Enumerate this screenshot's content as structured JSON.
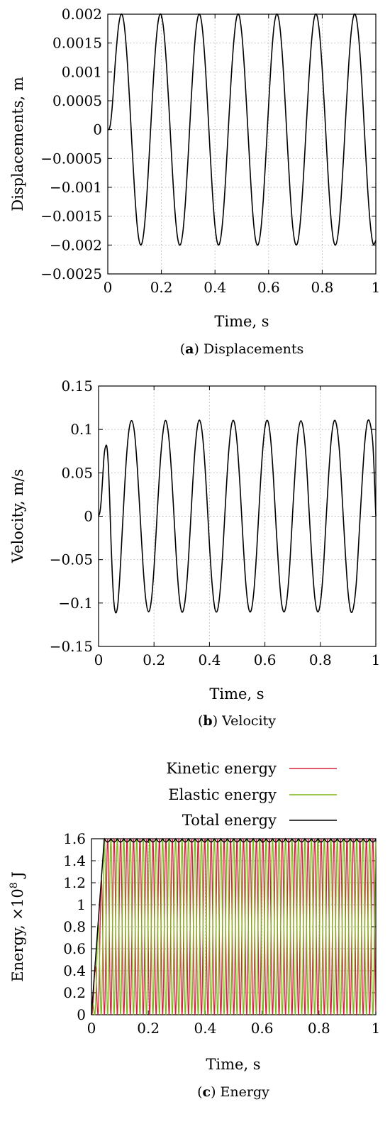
{
  "chart_data": [
    {
      "type": "line",
      "title": "",
      "xlabel": "Time, s",
      "ylabel": "Displacements, m",
      "caption_letter": "a",
      "caption_text": "Displacements",
      "xlim": [
        0,
        1
      ],
      "ylim": [
        -0.0025,
        0.002
      ],
      "grid": true,
      "x_ticks": [
        0,
        0.2,
        0.4,
        0.6,
        0.8,
        1
      ],
      "x_tick_labels": [
        "0",
        "0.2",
        "0.4",
        "0.6",
        "0.8",
        "1"
      ],
      "y_ticks": [
        0.002,
        0.0015,
        0.001,
        0.0005,
        0,
        -0.0005,
        -0.001,
        -0.0015,
        -0.002,
        -0.0025
      ],
      "y_tick_labels": [
        "0.002",
        "0.0015",
        "0.001",
        "0.0005",
        "0",
        "−0.0005",
        "−0.001",
        "−0.0015",
        "−0.002",
        "−0.0025"
      ],
      "series": [
        {
          "color": "#000000",
          "x": [
            0,
            0.005,
            0.01,
            0.015,
            0.02,
            0.025,
            0.03,
            0.04,
            0.05,
            0.06,
            0.07,
            0.08,
            0.09,
            0.1,
            0.11,
            0.12,
            0.13,
            0.14,
            0.15,
            0.16,
            0.17,
            0.18,
            0.19,
            0.2,
            0.21,
            0.22,
            0.23,
            0.24,
            0.25,
            0.26,
            0.27,
            0.28,
            0.29,
            0.3,
            0.31,
            0.32,
            0.33,
            0.34,
            0.35,
            0.36,
            0.37,
            0.38,
            0.39,
            0.4,
            0.41,
            0.42,
            0.43,
            0.44,
            0.45,
            0.46,
            0.47,
            0.48,
            0.49,
            0.5,
            0.51,
            0.52,
            0.53,
            0.54,
            0.55,
            0.56,
            0.57,
            0.58,
            0.59,
            0.6,
            0.61,
            0.62,
            0.63,
            0.64,
            0.65,
            0.66,
            0.67,
            0.68,
            0.69,
            0.7,
            0.71,
            0.72,
            0.73,
            0.74,
            0.75,
            0.76,
            0.77,
            0.78,
            0.79,
            0.8,
            0.81,
            0.82,
            0.83,
            0.84,
            0.85,
            0.86,
            0.87,
            0.88,
            0.89,
            0.9,
            0.91,
            0.92,
            0.93,
            0.94,
            0.95,
            0.96,
            0.97,
            0.98,
            0.99,
            1
          ],
          "y": [
            0,
            9e-06,
            0.0001,
            0.00031,
            0.00061,
            0.00096,
            0.00129,
            0.00179,
            0.002,
            0.00186,
            0.00137,
            0.00062,
            -0.00025,
            -0.00106,
            -0.00168,
            -0.00198,
            -0.00192,
            -0.00151,
            -0.00082,
            2e-05,
            0.00085,
            0.00152,
            0.00193,
            0.00198,
            0.00167,
            0.00105,
            0.00024,
            -0.00063,
            -0.00138,
            -0.00186,
            -0.002,
            -0.00178,
            -0.00123,
            -0.00045,
            0.00042,
            0.00121,
            0.00177,
            0.002,
            0.00186,
            0.00137,
            0.00063,
            -0.00024,
            -0.00106,
            -0.00167,
            -0.00198,
            -0.00192,
            -0.00151,
            -0.00082,
            3e-05,
            0.00086,
            0.00152,
            0.00193,
            0.00198,
            0.00166,
            0.00104,
            0.00023,
            -0.00063,
            -0.00139,
            -0.00187,
            -0.002,
            -0.00178,
            -0.00123,
            -0.00044,
            0.00042,
            0.00121,
            0.00178,
            0.002,
            0.00186,
            0.00137,
            0.00062,
            -0.00025,
            -0.00106,
            -0.00168,
            -0.00198,
            -0.00192,
            -0.00151,
            -0.00082,
            2e-05,
            0.00085,
            0.00152,
            0.00193,
            0.00198,
            0.00167,
            0.00105,
            0.00024,
            -0.00063,
            -0.00138,
            -0.00186,
            -0.002,
            -0.00178,
            -0.00123,
            -0.00045,
            0.00042,
            0.00121,
            0.00177,
            0.002,
            0.00186,
            0.00137,
            0.00063,
            -0.00024,
            -0.00106,
            -0.00167,
            -0.00198,
            -0.00192
          ]
        }
      ]
    },
    {
      "type": "line",
      "title": "",
      "xlabel": "Time, s",
      "ylabel": "Velocity, m/s",
      "caption_letter": "b",
      "caption_text": "Velocity",
      "xlim": [
        0,
        1
      ],
      "ylim": [
        -0.15,
        0.15
      ],
      "grid": true,
      "x_ticks": [
        0,
        0.2,
        0.4,
        0.6,
        0.8,
        1
      ],
      "x_tick_labels": [
        "0",
        "0.2",
        "0.4",
        "0.6",
        "0.8",
        "1"
      ],
      "y_ticks": [
        0.15,
        0.1,
        0.05,
        0,
        -0.05,
        -0.1,
        -0.15
      ],
      "y_tick_labels": [
        "0.15",
        "0.1",
        "0.05",
        "0",
        "−0.05",
        "−0.1",
        "−0.15"
      ],
      "series": [
        {
          "color": "#000000",
          "x": [
            0,
            0.005,
            0.01,
            0.015,
            0.02,
            0.025,
            0.03,
            0.035,
            0.04,
            0.045,
            0.05,
            0.055,
            0.06,
            0.065,
            0.07,
            0.075,
            0.08,
            0.09,
            0.1,
            0.11,
            0.12,
            0.13,
            0.14,
            0.15,
            0.16,
            0.17,
            0.18,
            0.19,
            0.2,
            0.21,
            0.22,
            0.23,
            0.24,
            0.25,
            0.26,
            0.27,
            0.28,
            0.29,
            0.3,
            0.31,
            0.32,
            0.33,
            0.34,
            0.35,
            0.36,
            0.37,
            0.38,
            0.39,
            0.4,
            0.41,
            0.42,
            0.43,
            0.44,
            0.45,
            0.46,
            0.47,
            0.48,
            0.49,
            0.5,
            0.51,
            0.52,
            0.53,
            0.54,
            0.55,
            0.56,
            0.57,
            0.58,
            0.59,
            0.6,
            0.61,
            0.62,
            0.63,
            0.64,
            0.65,
            0.66,
            0.67,
            0.68,
            0.69,
            0.7,
            0.71,
            0.72,
            0.73,
            0.74,
            0.75,
            0.76,
            0.77,
            0.78,
            0.79,
            0.8,
            0.81,
            0.82,
            0.83,
            0.84,
            0.85,
            0.86,
            0.87,
            0.88,
            0.89,
            0.9,
            0.91,
            0.92,
            0.93,
            0.94,
            0.95,
            0.96,
            0.97,
            0.98,
            0.99,
            1
          ],
          "y": [
            0,
            0.005,
            0.02,
            0.045,
            0.07,
            0.08,
            0.08,
            0.06,
            0.02,
            -0.03,
            -0.07,
            -0.098,
            -0.11,
            -0.11,
            -0.1,
            -0.078,
            -0.05,
            0.01,
            0.065,
            0.1,
            0.11,
            0.095,
            0.055,
            0.0,
            -0.055,
            -0.095,
            -0.11,
            -0.098,
            -0.06,
            -0.005,
            0.05,
            0.09,
            0.11,
            0.1,
            0.065,
            0.012,
            -0.045,
            -0.09,
            -0.11,
            -0.102,
            -0.07,
            -0.018,
            0.04,
            0.085,
            0.109,
            0.105,
            0.075,
            0.025,
            -0.033,
            -0.08,
            -0.107,
            -0.107,
            -0.08,
            -0.03,
            0.028,
            0.077,
            0.106,
            0.108,
            0.083,
            0.036,
            -0.022,
            -0.073,
            -0.104,
            -0.109,
            -0.087,
            -0.042,
            0.016,
            0.068,
            0.102,
            0.11,
            0.091,
            0.048,
            -0.01,
            -0.063,
            -0.1,
            -0.11,
            -0.094,
            -0.054,
            0.004,
            0.058,
            0.097,
            0.11,
            0.097,
            0.06,
            0.002,
            -0.053,
            -0.094,
            -0.11,
            -0.1,
            -0.065,
            -0.008,
            0.048,
            0.091,
            0.11,
            0.102,
            0.07,
            0.014,
            -0.042,
            -0.088,
            -0.11,
            -0.104,
            -0.075,
            -0.02,
            0.036,
            0.084,
            0.109,
            0.106,
            0.08,
            0.0
          ]
        }
      ]
    },
    {
      "type": "line",
      "title": "",
      "xlabel": "Time, s",
      "ylabel": "Energy, ×10⁸ J",
      "ylabel_main": "Energy, ×10",
      "ylabel_sup": "8",
      "ylabel_unit": " J",
      "caption_letter": "c",
      "caption_text": "Energy",
      "xlim": [
        0,
        1
      ],
      "ylim": [
        0,
        1.6
      ],
      "grid": true,
      "legend_position": "top",
      "x_ticks": [
        0,
        0.2,
        0.4,
        0.6,
        0.8,
        1
      ],
      "x_tick_labels": [
        "0",
        "0.2",
        "0.4",
        "0.6",
        "0.8",
        "1"
      ],
      "y_ticks": [
        1.6,
        1.4,
        1.2,
        1,
        0.8,
        0.6,
        0.4,
        0.2,
        0
      ],
      "y_tick_labels": [
        "1.6",
        "1.4",
        "1.2",
        "1",
        "0.8",
        "0.6",
        "0.4",
        "0.2",
        "0"
      ],
      "series": [
        {
          "name": "Kinetic energy",
          "color": "#d6203a",
          "model": {
            "amplitude": 1.6,
            "period": 0.0455,
            "phase": 0.0,
            "ramp_end": 0.045
          }
        },
        {
          "name": "Elastic energy",
          "color": "#7cb516",
          "model": {
            "amplitude": 1.6,
            "period": 0.0455,
            "phase": 0.5,
            "ramp_end": 0.045
          }
        },
        {
          "name": "Total energy",
          "color": "#000000",
          "model": {
            "amplitude": 1.6,
            "ripple": 0.03,
            "period": 0.0455,
            "ramp_end": 0.045
          }
        }
      ]
    }
  ]
}
